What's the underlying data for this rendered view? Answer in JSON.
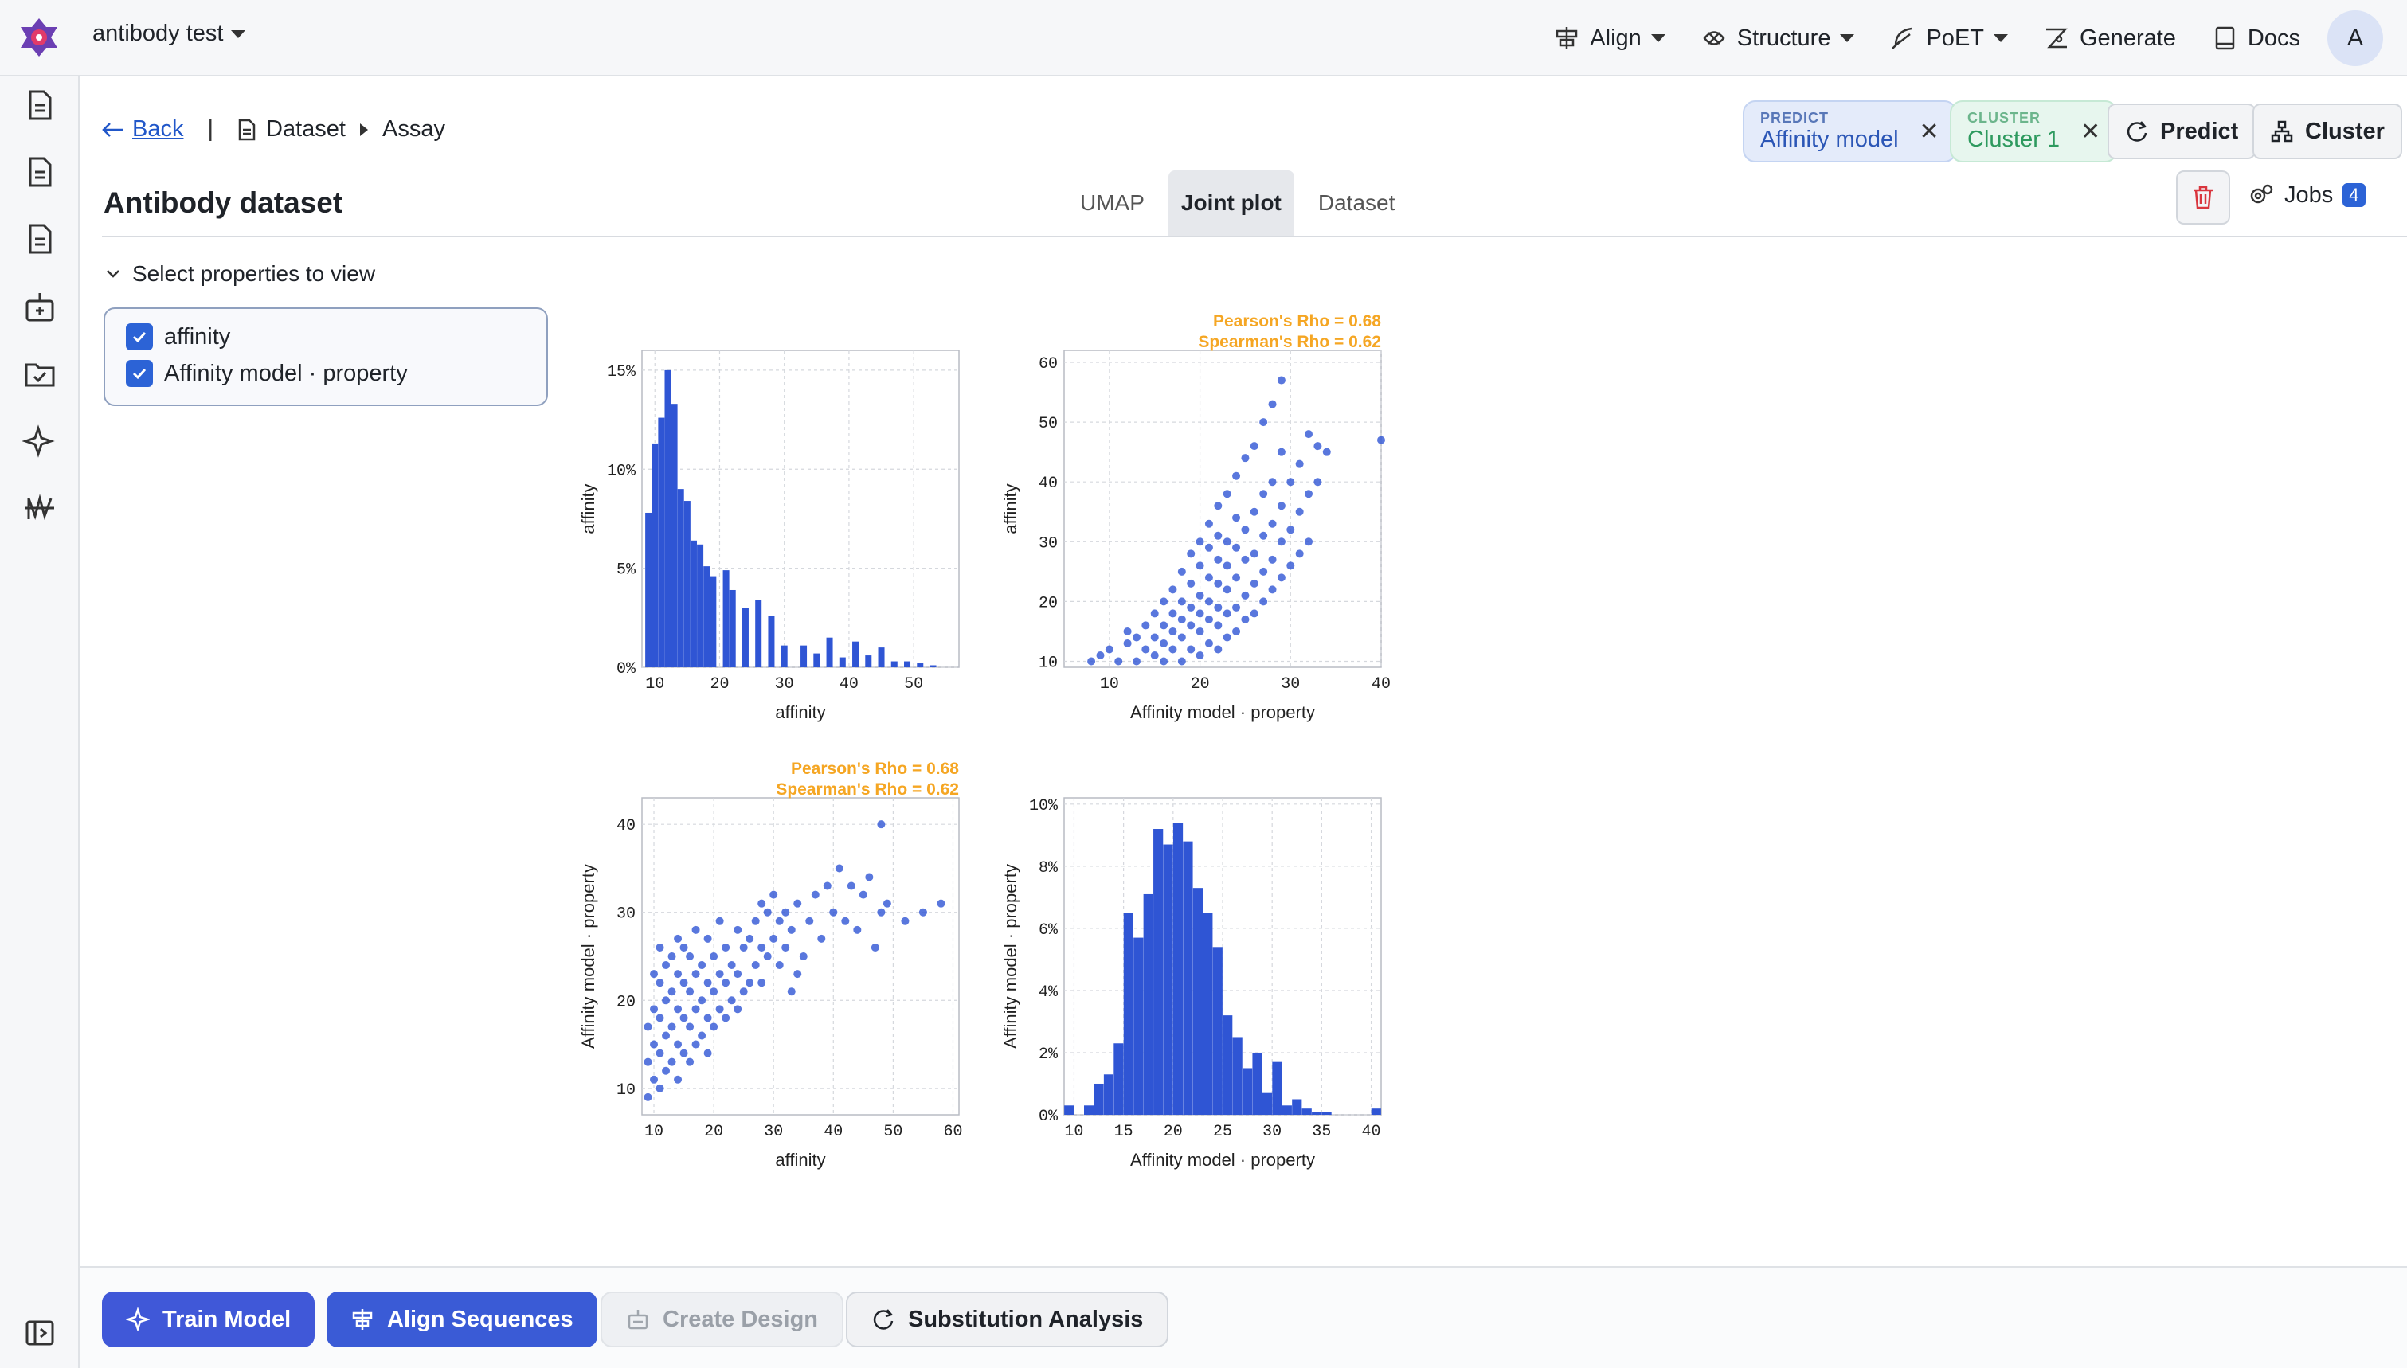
{
  "header": {
    "project": "antibody test",
    "nav": [
      "Align",
      "Structure",
      "PoET",
      "Generate",
      "Docs"
    ],
    "avatar": "A"
  },
  "breadcrumb": {
    "back": "Back",
    "dataset": "Dataset",
    "assay": "Assay"
  },
  "page_title": "Antibody dataset",
  "tabs": [
    "UMAP",
    "Joint plot",
    "Dataset"
  ],
  "predict_pill": {
    "label": "PREDICT",
    "value": "Affinity model"
  },
  "cluster_pill": {
    "label": "CLUSTER",
    "value": "Cluster 1"
  },
  "actions": {
    "predict": "Predict",
    "cluster": "Cluster",
    "jobs": "Jobs",
    "jobs_count": "4"
  },
  "properties": {
    "heading": "Select properties to view",
    "items": [
      "affinity",
      "Affinity model · property"
    ]
  },
  "bottom": {
    "train": "Train Model",
    "align": "Align Sequences",
    "design": "Create Design",
    "subst": "Substitution Analysis"
  },
  "chart_data": [
    {
      "type": "bar",
      "xlabel": "affinity",
      "ylabel": "affinity",
      "xlim": [
        8,
        57
      ],
      "ylim": [
        0,
        0.16
      ],
      "xticks": [
        10,
        20,
        30,
        40,
        50
      ],
      "yticks": [
        "0%",
        "5%",
        "10%",
        "15%"
      ],
      "x": [
        9,
        10,
        11,
        12,
        13,
        14,
        15,
        16,
        17,
        18,
        19,
        21,
        22,
        24,
        26,
        28,
        30,
        33,
        35,
        37,
        39,
        41,
        43,
        45,
        47,
        49,
        51,
        53
      ],
      "values": [
        0.078,
        0.113,
        0.126,
        0.15,
        0.133,
        0.09,
        0.084,
        0.064,
        0.062,
        0.051,
        0.046,
        0.049,
        0.039,
        0.03,
        0.034,
        0.026,
        0.011,
        0.011,
        0.007,
        0.015,
        0.005,
        0.013,
        0.006,
        0.01,
        0.003,
        0.003,
        0.002,
        0.001
      ]
    },
    {
      "type": "scatter",
      "xlabel": "Affinity model · property",
      "ylabel": "affinity",
      "xlim": [
        5,
        40
      ],
      "ylim": [
        9,
        62
      ],
      "xticks": [
        10,
        20,
        30,
        40
      ],
      "yticks": [
        10,
        20,
        30,
        40,
        50,
        60
      ],
      "annotations": [
        "Pearson's Rho = 0.68",
        "Spearman's Rho = 0.62"
      ],
      "points": [
        [
          8,
          10
        ],
        [
          9,
          11
        ],
        [
          10,
          12
        ],
        [
          11,
          10
        ],
        [
          12,
          13
        ],
        [
          12,
          15
        ],
        [
          13,
          10
        ],
        [
          13,
          14
        ],
        [
          14,
          12
        ],
        [
          14,
          16
        ],
        [
          15,
          11
        ],
        [
          15,
          14
        ],
        [
          15,
          18
        ],
        [
          16,
          10
        ],
        [
          16,
          13
        ],
        [
          16,
          16
        ],
        [
          16,
          20
        ],
        [
          17,
          12
        ],
        [
          17,
          15
        ],
        [
          17,
          18
        ],
        [
          17,
          22
        ],
        [
          18,
          10
        ],
        [
          18,
          14
        ],
        [
          18,
          17
        ],
        [
          18,
          20
        ],
        [
          18,
          25
        ],
        [
          19,
          12
        ],
        [
          19,
          16
        ],
        [
          19,
          19
        ],
        [
          19,
          23
        ],
        [
          19,
          28
        ],
        [
          20,
          11
        ],
        [
          20,
          15
        ],
        [
          20,
          18
        ],
        [
          20,
          21
        ],
        [
          20,
          26
        ],
        [
          20,
          30
        ],
        [
          21,
          13
        ],
        [
          21,
          17
        ],
        [
          21,
          20
        ],
        [
          21,
          24
        ],
        [
          21,
          29
        ],
        [
          21,
          33
        ],
        [
          22,
          12
        ],
        [
          22,
          16
        ],
        [
          22,
          19
        ],
        [
          22,
          23
        ],
        [
          22,
          27
        ],
        [
          22,
          31
        ],
        [
          22,
          36
        ],
        [
          23,
          14
        ],
        [
          23,
          18
        ],
        [
          23,
          22
        ],
        [
          23,
          26
        ],
        [
          23,
          30
        ],
        [
          23,
          38
        ],
        [
          24,
          15
        ],
        [
          24,
          19
        ],
        [
          24,
          24
        ],
        [
          24,
          29
        ],
        [
          24,
          34
        ],
        [
          24,
          41
        ],
        [
          25,
          17
        ],
        [
          25,
          21
        ],
        [
          25,
          27
        ],
        [
          25,
          32
        ],
        [
          25,
          44
        ],
        [
          26,
          18
        ],
        [
          26,
          23
        ],
        [
          26,
          28
        ],
        [
          26,
          35
        ],
        [
          26,
          46
        ],
        [
          27,
          20
        ],
        [
          27,
          25
        ],
        [
          27,
          31
        ],
        [
          27,
          38
        ],
        [
          27,
          50
        ],
        [
          28,
          22
        ],
        [
          28,
          27
        ],
        [
          28,
          33
        ],
        [
          28,
          40
        ],
        [
          28,
          53
        ],
        [
          29,
          24
        ],
        [
          29,
          30
        ],
        [
          29,
          36
        ],
        [
          29,
          45
        ],
        [
          29,
          57
        ],
        [
          30,
          26
        ],
        [
          30,
          32
        ],
        [
          30,
          40
        ],
        [
          31,
          28
        ],
        [
          31,
          35
        ],
        [
          31,
          43
        ],
        [
          32,
          30
        ],
        [
          32,
          38
        ],
        [
          32,
          48
        ],
        [
          33,
          40
        ],
        [
          33,
          46
        ],
        [
          34,
          45
        ],
        [
          40,
          47
        ]
      ]
    },
    {
      "type": "scatter",
      "xlabel": "affinity",
      "ylabel": "Affinity model · property",
      "xlim": [
        8,
        61
      ],
      "ylim": [
        7,
        43
      ],
      "xticks": [
        10,
        20,
        30,
        40,
        50,
        60
      ],
      "yticks": [
        10,
        20,
        30,
        40
      ],
      "annotations": [
        "Pearson's Rho = 0.68",
        "Spearman's Rho = 0.62"
      ],
      "points": [
        [
          9,
          9
        ],
        [
          9,
          13
        ],
        [
          9,
          17
        ],
        [
          10,
          11
        ],
        [
          10,
          15
        ],
        [
          10,
          19
        ],
        [
          10,
          23
        ],
        [
          11,
          10
        ],
        [
          11,
          14
        ],
        [
          11,
          18
        ],
        [
          11,
          22
        ],
        [
          11,
          26
        ],
        [
          12,
          12
        ],
        [
          12,
          16
        ],
        [
          12,
          20
        ],
        [
          12,
          24
        ],
        [
          13,
          13
        ],
        [
          13,
          17
        ],
        [
          13,
          21
        ],
        [
          13,
          25
        ],
        [
          14,
          11
        ],
        [
          14,
          15
        ],
        [
          14,
          19
        ],
        [
          14,
          23
        ],
        [
          14,
          27
        ],
        [
          15,
          14
        ],
        [
          15,
          18
        ],
        [
          15,
          22
        ],
        [
          15,
          26
        ],
        [
          16,
          13
        ],
        [
          16,
          17
        ],
        [
          16,
          21
        ],
        [
          16,
          25
        ],
        [
          17,
          15
        ],
        [
          17,
          19
        ],
        [
          17,
          23
        ],
        [
          17,
          28
        ],
        [
          18,
          16
        ],
        [
          18,
          20
        ],
        [
          18,
          24
        ],
        [
          19,
          14
        ],
        [
          19,
          18
        ],
        [
          19,
          22
        ],
        [
          19,
          27
        ],
        [
          20,
          17
        ],
        [
          20,
          21
        ],
        [
          20,
          25
        ],
        [
          21,
          19
        ],
        [
          21,
          23
        ],
        [
          21,
          29
        ],
        [
          22,
          18
        ],
        [
          22,
          22
        ],
        [
          22,
          26
        ],
        [
          23,
          20
        ],
        [
          23,
          24
        ],
        [
          24,
          19
        ],
        [
          24,
          23
        ],
        [
          24,
          28
        ],
        [
          25,
          21
        ],
        [
          25,
          26
        ],
        [
          26,
          22
        ],
        [
          26,
          27
        ],
        [
          27,
          24
        ],
        [
          27,
          29
        ],
        [
          28,
          22
        ],
        [
          28,
          26
        ],
        [
          28,
          31
        ],
        [
          29,
          25
        ],
        [
          29,
          30
        ],
        [
          30,
          27
        ],
        [
          30,
          32
        ],
        [
          31,
          24
        ],
        [
          31,
          29
        ],
        [
          32,
          26
        ],
        [
          32,
          30
        ],
        [
          33,
          21
        ],
        [
          33,
          28
        ],
        [
          34,
          23
        ],
        [
          34,
          31
        ],
        [
          35,
          25
        ],
        [
          36,
          29
        ],
        [
          37,
          32
        ],
        [
          38,
          27
        ],
        [
          39,
          33
        ],
        [
          40,
          30
        ],
        [
          41,
          35
        ],
        [
          42,
          29
        ],
        [
          43,
          33
        ],
        [
          44,
          28
        ],
        [
          45,
          32
        ],
        [
          46,
          34
        ],
        [
          47,
          26
        ],
        [
          48,
          30
        ],
        [
          48,
          40
        ],
        [
          49,
          31
        ],
        [
          52,
          29
        ],
        [
          55,
          30
        ],
        [
          58,
          31
        ]
      ]
    },
    {
      "type": "bar",
      "xlabel": "Affinity model · property",
      "ylabel": "Affinity model · property",
      "xlim": [
        9,
        41
      ],
      "ylim": [
        0,
        0.102
      ],
      "xticks": [
        10,
        15,
        20,
        25,
        30,
        35,
        40
      ],
      "yticks": [
        "0%",
        "2%",
        "4%",
        "6%",
        "8%",
        "10%"
      ],
      "x": [
        9.5,
        11.5,
        12.5,
        13.5,
        14.5,
        15.5,
        16.5,
        17.5,
        18.5,
        19.5,
        20.5,
        21.5,
        22.5,
        23.5,
        24.5,
        25.5,
        26.5,
        27.5,
        28.5,
        29.5,
        30.5,
        31.5,
        32.5,
        33.5,
        34.5,
        35.5,
        40.5
      ],
      "values": [
        0.003,
        0.003,
        0.01,
        0.013,
        0.023,
        0.065,
        0.057,
        0.071,
        0.092,
        0.087,
        0.094,
        0.088,
        0.073,
        0.065,
        0.054,
        0.032,
        0.025,
        0.015,
        0.02,
        0.007,
        0.017,
        0.003,
        0.005,
        0.002,
        0.001,
        0.001,
        0.002
      ]
    }
  ]
}
